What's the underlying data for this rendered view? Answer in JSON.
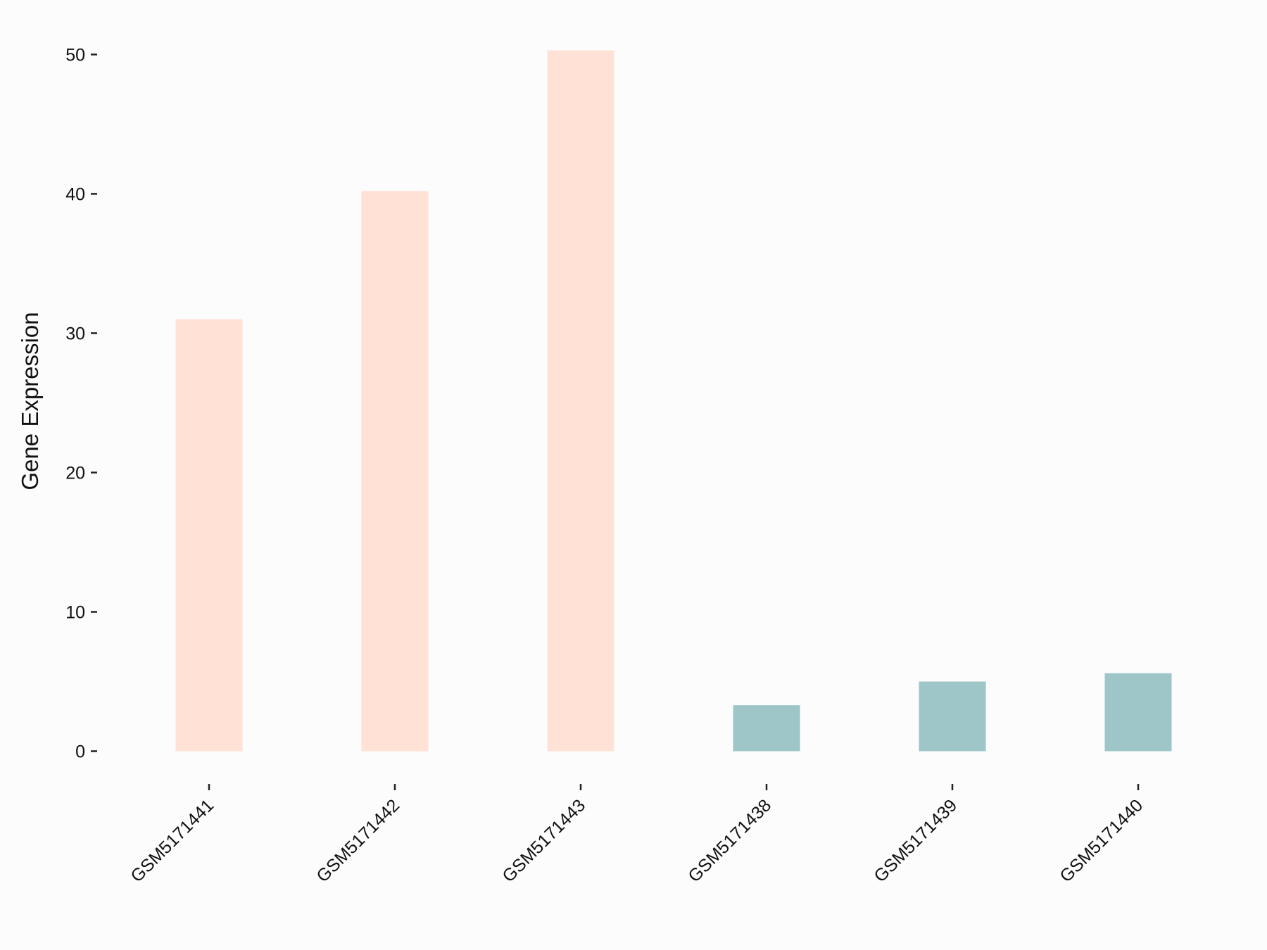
{
  "chart_data": {
    "type": "bar",
    "y_label": "Gene Expression",
    "categories": [
      "GSM5171441",
      "GSM5171442",
      "GSM5171443",
      "GSM5171438",
      "GSM5171439",
      "GSM5171440"
    ],
    "values": [
      31,
      40.2,
      50.3,
      3.3,
      5,
      5.6
    ],
    "colors": [
      "#FFE1D6",
      "#FFE1D6",
      "#FFE1D6",
      "#9EC5C8",
      "#9EC5C8",
      "#9EC5C8"
    ],
    "ylim": [
      -2.5,
      52.8
    ],
    "yticks": [
      0,
      10,
      20,
      30,
      40,
      50
    ],
    "grid": false
  }
}
